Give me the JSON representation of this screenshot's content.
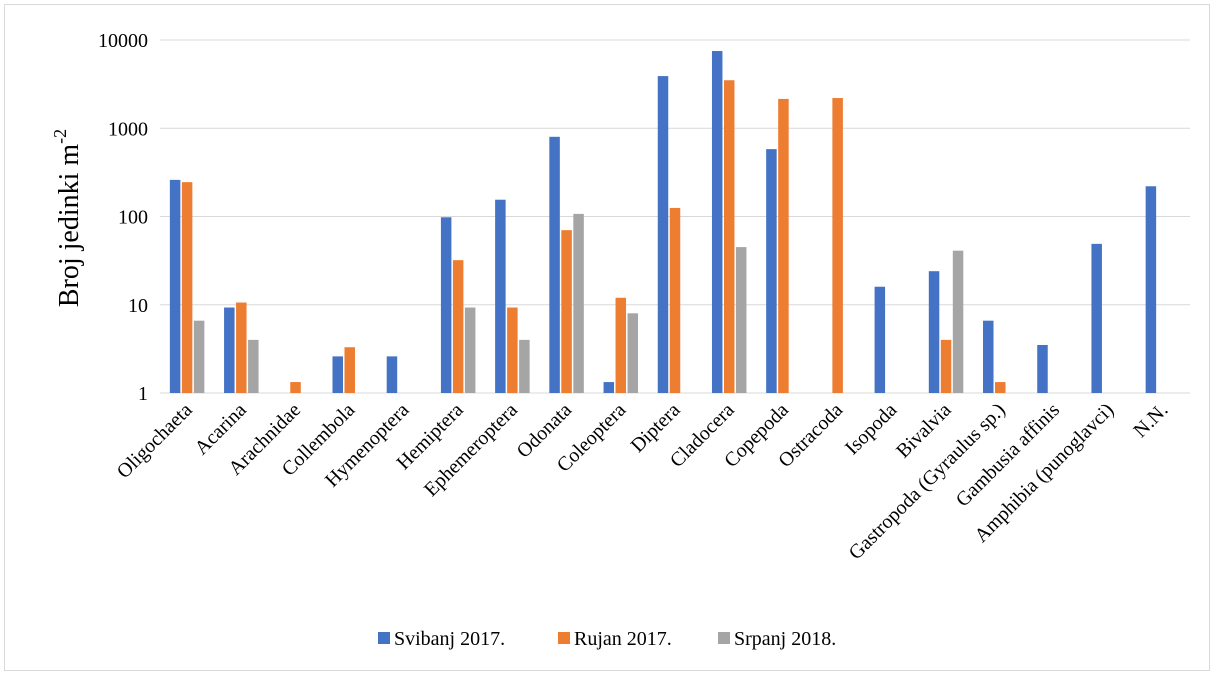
{
  "chart_data": {
    "type": "bar",
    "scale": "log",
    "ylabel": "Broj jedinki m",
    "ylabel_sup": "-2",
    "ylim": [
      1,
      10000
    ],
    "yticks": [
      "1",
      "10",
      "100",
      "1000",
      "10000"
    ],
    "grid": true,
    "legend_position": "bottom",
    "categories": [
      "Oligochaeta",
      "Acarina",
      "Arachnidae",
      "Collembola",
      "Hymenoptera",
      "Hemiptera",
      "Ephemeroptera",
      "Odonata",
      "Coleoptera",
      "Diptera",
      "Cladocera",
      "Copepoda",
      "Ostracoda",
      "Isopoda",
      "Bivalvia",
      "Gastropoda (Gyraulus sp.)",
      "Gambusia affinis",
      "Amphibia (punoglavci)",
      "N.N."
    ],
    "series": [
      {
        "name": "Svibanj 2017.",
        "color": "#4472C4",
        "values": [
          260,
          9.3,
          null,
          2.6,
          2.6,
          98,
          155,
          800,
          1.33,
          3900,
          7500,
          580,
          null,
          16,
          24,
          6.6,
          3.5,
          49,
          220
        ]
      },
      {
        "name": "Rujan 2017.",
        "color": "#ED7D31",
        "values": [
          245,
          10.6,
          1.33,
          3.3,
          null,
          32,
          9.3,
          70,
          12,
          125,
          3500,
          2150,
          2200,
          null,
          4,
          1.33,
          null,
          null,
          null
        ]
      },
      {
        "name": "Srpanj 2018.",
        "color": "#A5A5A5",
        "values": [
          6.6,
          4,
          null,
          null,
          null,
          9.3,
          4,
          107,
          8,
          null,
          45,
          null,
          null,
          null,
          41,
          null,
          null,
          null,
          null
        ]
      }
    ]
  }
}
